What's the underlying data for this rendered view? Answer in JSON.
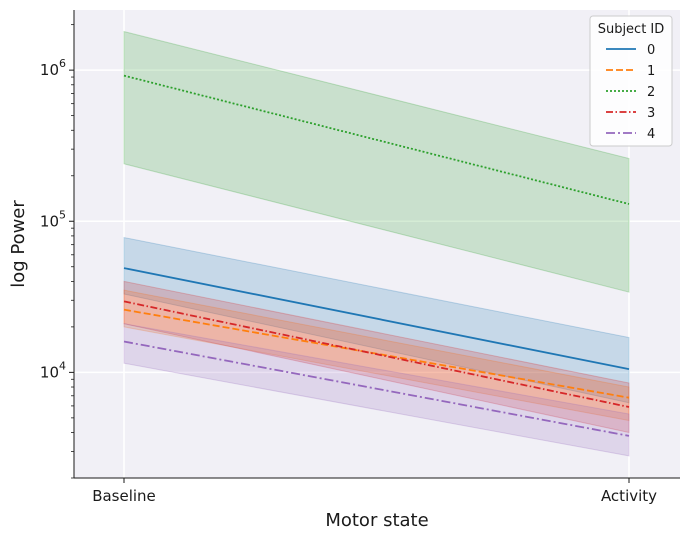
{
  "chart_data": {
    "type": "line",
    "categories": [
      "Baseline",
      "Activity"
    ],
    "xlabel": "Motor state",
    "ylabel": "log Power",
    "yscale": "log",
    "ylim": [
      2000,
      2500000
    ],
    "y_tick_labels": [
      {
        "value": 10000,
        "base": "10",
        "exp": "4"
      },
      {
        "value": 100000,
        "base": "10",
        "exp": "5"
      },
      {
        "value": 1000000,
        "base": "10",
        "exp": "6"
      }
    ],
    "grid": true,
    "background": "#f1f0f6",
    "legend": {
      "title": "Subject ID",
      "position": "top-right"
    },
    "series": [
      {
        "name": "0",
        "color": "#1f77b4",
        "dash": "solid",
        "values": [
          49000,
          10500
        ],
        "ci_low": [
          33000,
          6300
        ],
        "ci_high": [
          78000,
          17000
        ]
      },
      {
        "name": "1",
        "color": "#ff7f0e",
        "dash": "dashed",
        "values": [
          26000,
          6800
        ],
        "ci_low": [
          20000,
          4800
        ],
        "ci_high": [
          35000,
          8000
        ]
      },
      {
        "name": "2",
        "color": "#2ca02c",
        "dash": "dotted",
        "values": [
          920000,
          130000
        ],
        "ci_low": [
          240000,
          34000
        ],
        "ci_high": [
          1800000,
          260000
        ]
      },
      {
        "name": "3",
        "color": "#d62728",
        "dash": "dashdot",
        "values": [
          29500,
          5900
        ],
        "ci_low": [
          21000,
          4000
        ],
        "ci_high": [
          40000,
          8500
        ]
      },
      {
        "name": "4",
        "color": "#9467bd",
        "dash": "loosedashdot",
        "values": [
          16000,
          3800
        ],
        "ci_low": [
          11500,
          2800
        ],
        "ci_high": [
          21000,
          5300
        ]
      }
    ]
  }
}
